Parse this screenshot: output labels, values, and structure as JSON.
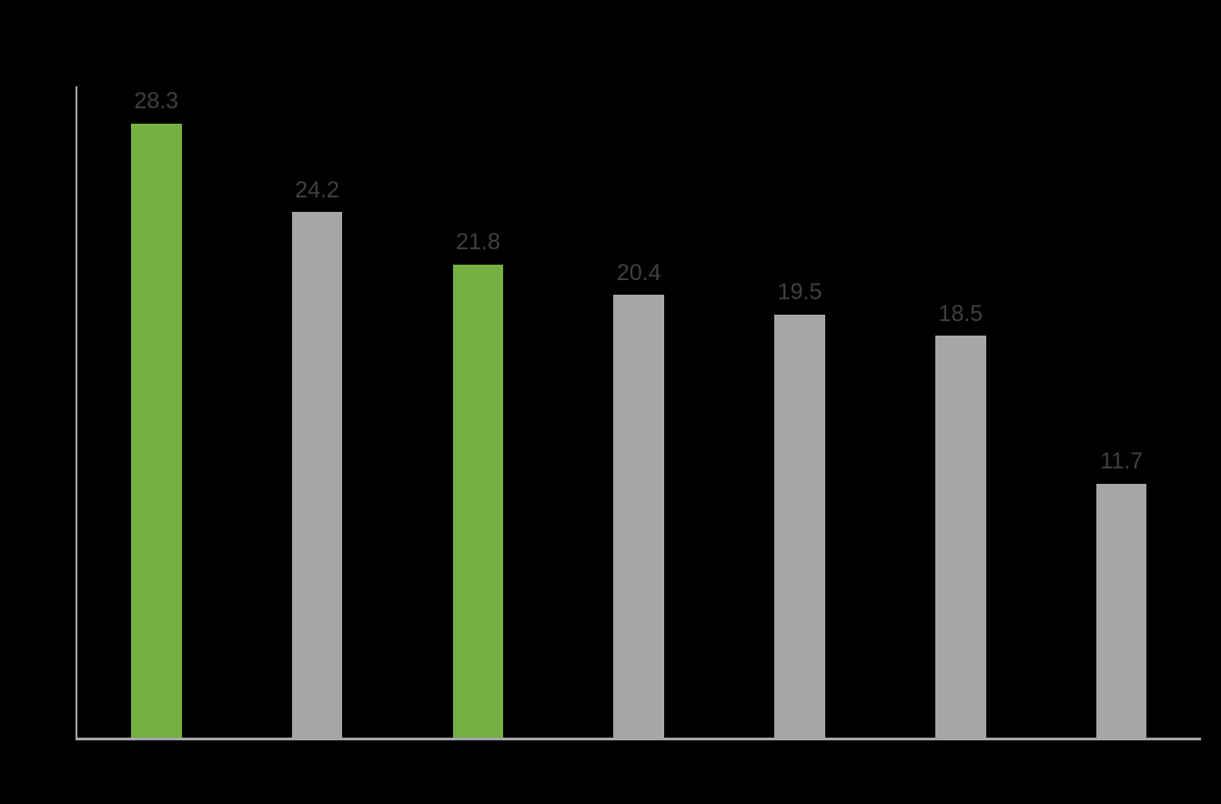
{
  "chart_data": {
    "type": "bar",
    "values": [
      28.3,
      24.2,
      21.8,
      20.4,
      19.5,
      18.5,
      11.7
    ],
    "labels": [
      "28.3",
      "24.2",
      "21.8",
      "20.4",
      "19.5",
      "18.5",
      "11.7"
    ],
    "bar_colors": [
      "#76b043",
      "#a6a6a6",
      "#76b043",
      "#a6a6a6",
      "#a6a6a6",
      "#a6a6a6",
      "#a6a6a6"
    ],
    "highlighted_indices": [
      0,
      2
    ],
    "title": "",
    "xlabel": "",
    "ylabel": "",
    "categories": [
      "",
      "",
      "",
      "",
      "",
      "",
      ""
    ],
    "ylim": [
      0,
      30
    ],
    "grid": false,
    "legend": false,
    "colors": {
      "highlight": "#76b043",
      "default": "#a6a6a6",
      "label": "#404040",
      "axis": "#a6a6a6",
      "background": "#000000"
    }
  }
}
